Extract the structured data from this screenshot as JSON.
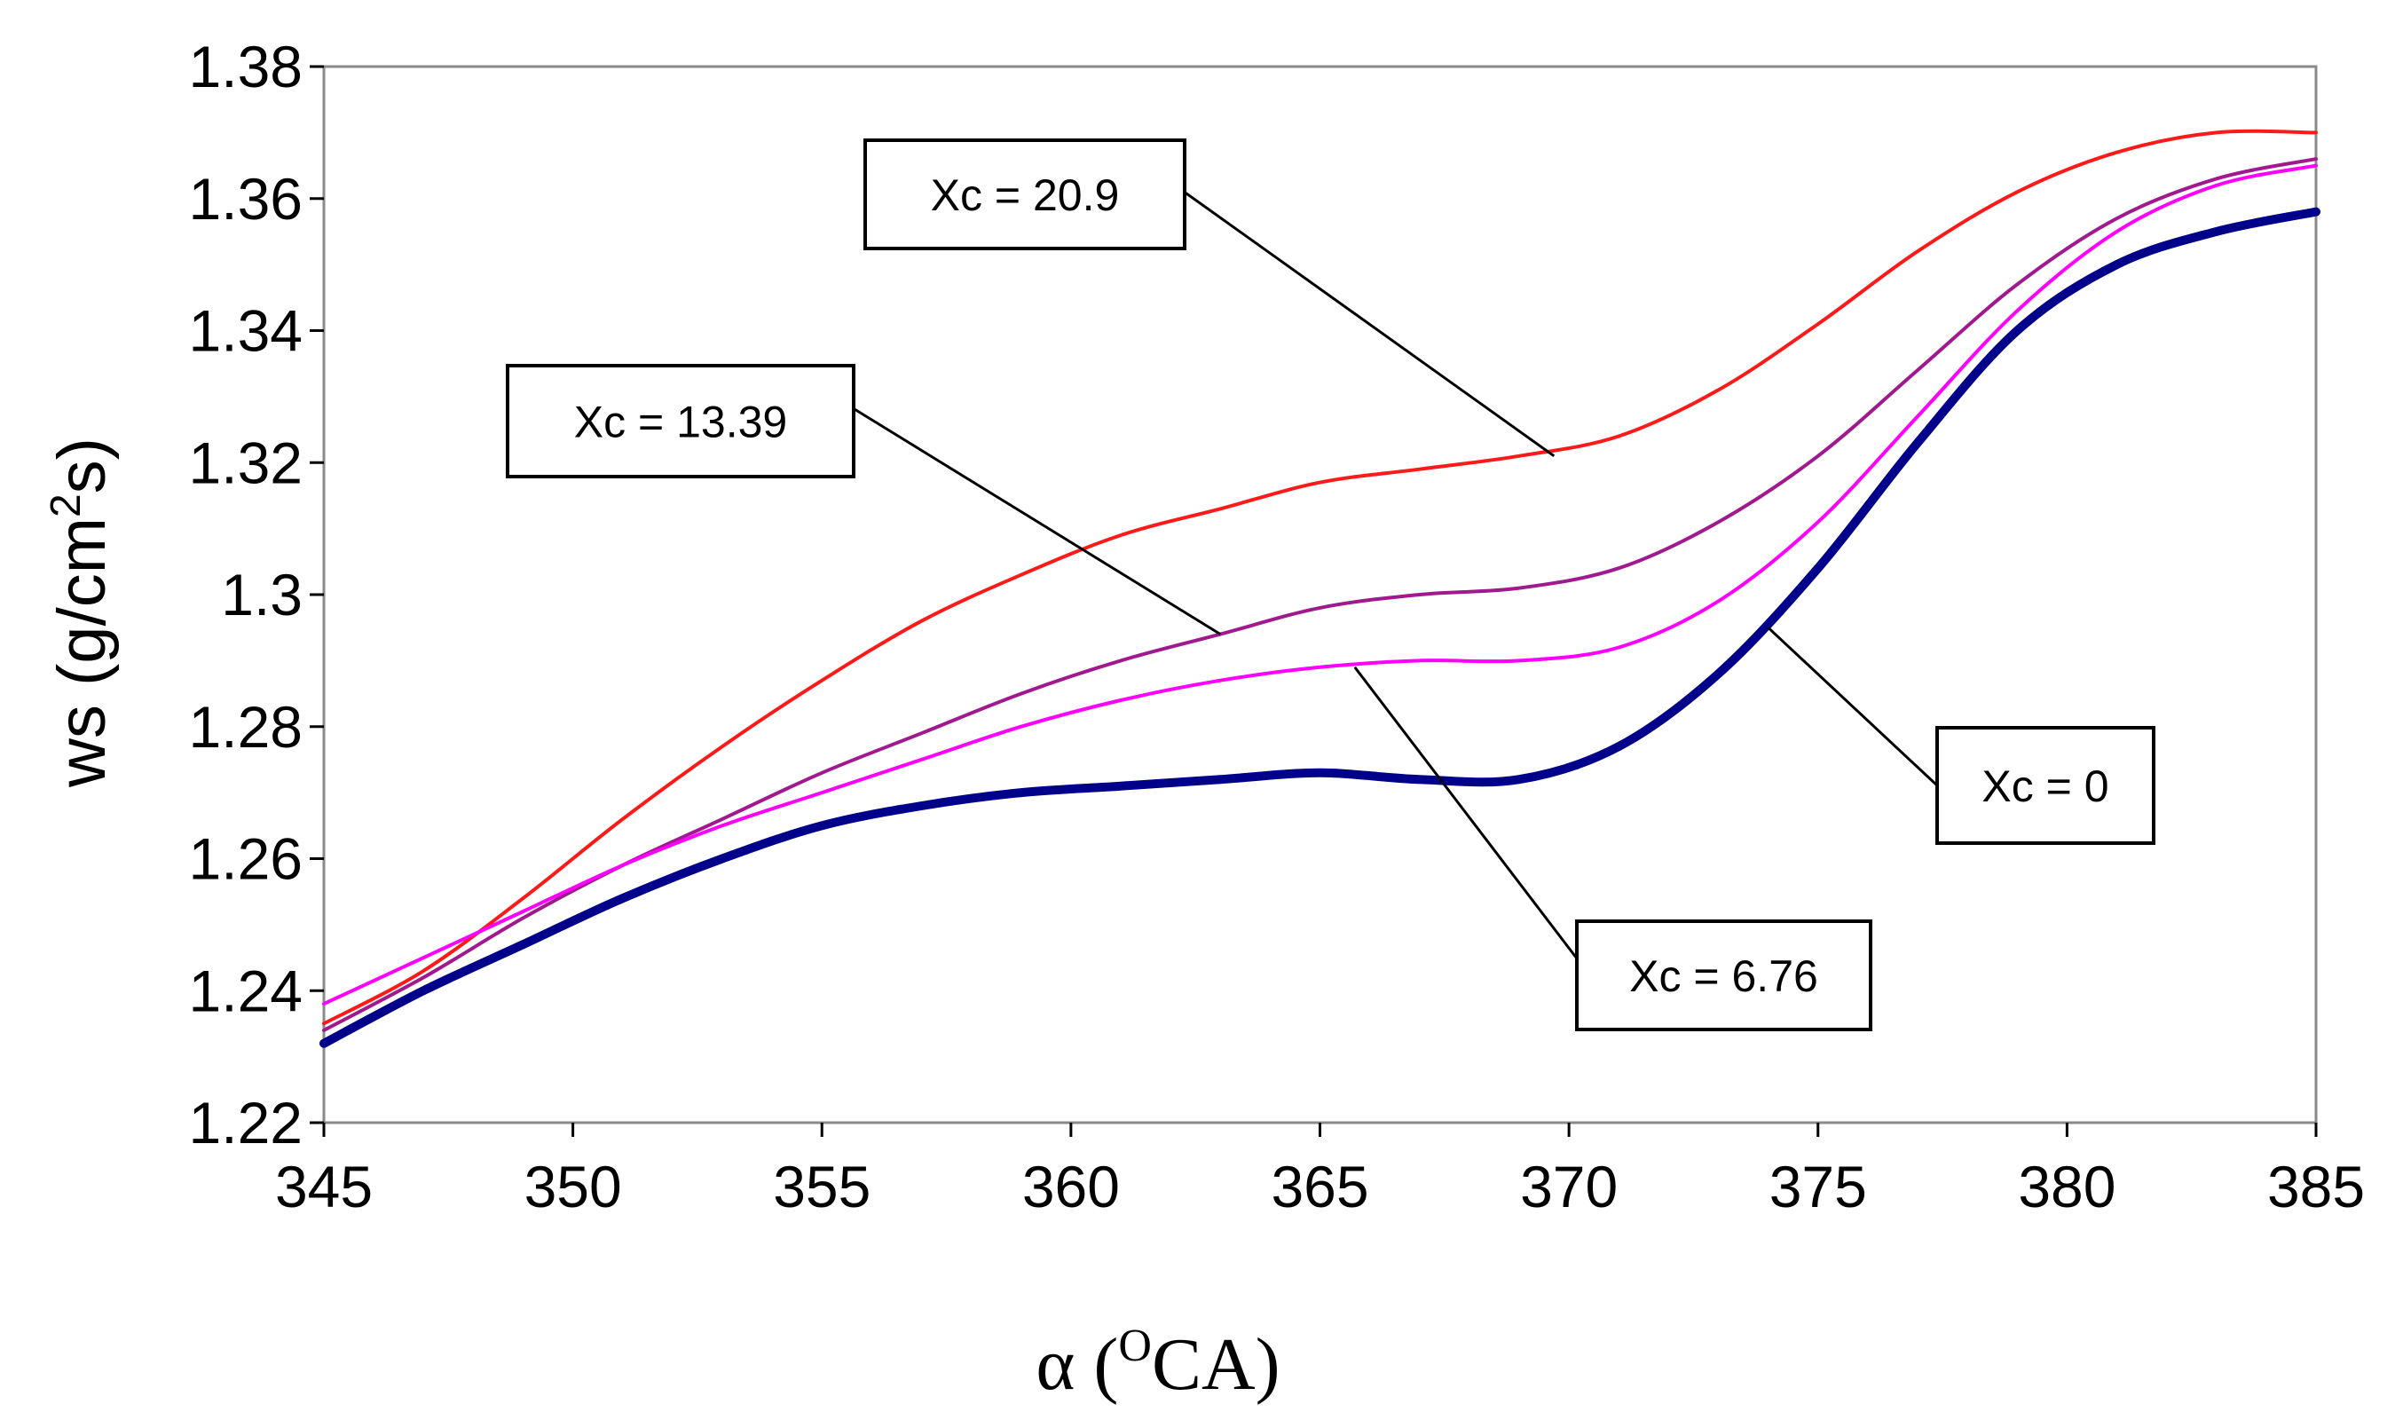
{
  "chart_data": {
    "type": "line",
    "title": "",
    "xlabel": {
      "prefix": "α (",
      "sup": "O",
      "suffix": "CA)"
    },
    "ylabel": {
      "prefix": "ws (g/cm",
      "sup": "2",
      "suffix": "s)"
    },
    "xlim": [
      345,
      385
    ],
    "ylim": [
      1.22,
      1.38
    ],
    "xticks": [
      "345",
      "350",
      "355",
      "360",
      "365",
      "370",
      "375",
      "380",
      "385"
    ],
    "yticks": [
      "1.22",
      "1.24",
      "1.26",
      "1.28",
      "1.3",
      "1.32",
      "1.34",
      "1.36",
      "1.38"
    ],
    "grid": false,
    "legend": "callouts",
    "series": [
      {
        "name": "Xc = 20.9",
        "color": "#ff1a1a",
        "width": 4,
        "points": [
          [
            345,
            1.235
          ],
          [
            347,
            1.243
          ],
          [
            349,
            1.254
          ],
          [
            351,
            1.266
          ],
          [
            353,
            1.277
          ],
          [
            355,
            1.287
          ],
          [
            357,
            1.296
          ],
          [
            359,
            1.303
          ],
          [
            361,
            1.309
          ],
          [
            363,
            1.313
          ],
          [
            365,
            1.317
          ],
          [
            367,
            1.319
          ],
          [
            369,
            1.321
          ],
          [
            371,
            1.324
          ],
          [
            373,
            1.331
          ],
          [
            375,
            1.341
          ],
          [
            377,
            1.352
          ],
          [
            379,
            1.361
          ],
          [
            381,
            1.367
          ],
          [
            383,
            1.37
          ],
          [
            385,
            1.37
          ]
        ]
      },
      {
        "name": "Xc = 13.39",
        "color": "#a0198f",
        "width": 4,
        "points": [
          [
            345,
            1.234
          ],
          [
            347,
            1.242
          ],
          [
            349,
            1.251
          ],
          [
            351,
            1.259
          ],
          [
            353,
            1.266
          ],
          [
            355,
            1.273
          ],
          [
            357,
            1.279
          ],
          [
            359,
            1.285
          ],
          [
            361,
            1.29
          ],
          [
            363,
            1.294
          ],
          [
            365,
            1.298
          ],
          [
            367,
            1.3
          ],
          [
            369,
            1.301
          ],
          [
            371,
            1.304
          ],
          [
            373,
            1.311
          ],
          [
            375,
            1.321
          ],
          [
            377,
            1.334
          ],
          [
            379,
            1.347
          ],
          [
            381,
            1.357
          ],
          [
            383,
            1.363
          ],
          [
            385,
            1.366
          ]
        ]
      },
      {
        "name": "Xc = 6.76",
        "color": "#ff00ff",
        "width": 4,
        "points": [
          [
            345,
            1.238
          ],
          [
            347,
            1.245
          ],
          [
            349,
            1.252
          ],
          [
            351,
            1.259
          ],
          [
            353,
            1.265
          ],
          [
            355,
            1.27
          ],
          [
            357,
            1.275
          ],
          [
            359,
            1.28
          ],
          [
            361,
            1.284
          ],
          [
            363,
            1.287
          ],
          [
            365,
            1.289
          ],
          [
            367,
            1.29
          ],
          [
            369,
            1.29
          ],
          [
            371,
            1.292
          ],
          [
            373,
            1.299
          ],
          [
            375,
            1.311
          ],
          [
            377,
            1.327
          ],
          [
            379,
            1.343
          ],
          [
            381,
            1.355
          ],
          [
            383,
            1.362
          ],
          [
            385,
            1.365
          ]
        ]
      },
      {
        "name": "Xc = 0",
        "color": "#00008b",
        "width": 10,
        "points": [
          [
            345,
            1.232
          ],
          [
            347,
            1.24
          ],
          [
            349,
            1.247
          ],
          [
            351,
            1.254
          ],
          [
            353,
            1.26
          ],
          [
            355,
            1.265
          ],
          [
            357,
            1.268
          ],
          [
            359,
            1.27
          ],
          [
            361,
            1.271
          ],
          [
            363,
            1.272
          ],
          [
            365,
            1.273
          ],
          [
            367,
            1.272
          ],
          [
            369,
            1.272
          ],
          [
            371,
            1.277
          ],
          [
            373,
            1.288
          ],
          [
            375,
            1.304
          ],
          [
            377,
            1.323
          ],
          [
            379,
            1.34
          ],
          [
            381,
            1.35
          ],
          [
            383,
            1.355
          ],
          [
            385,
            1.358
          ]
        ]
      }
    ],
    "annotations": [
      {
        "label": "Xc = 20.9",
        "target": [
          369.7,
          1.321
        ]
      },
      {
        "label": "Xc = 13.39",
        "target": [
          363.0,
          1.294
        ]
      },
      {
        "label": "Xc = 6.76",
        "target": [
          365.7,
          1.289
        ]
      },
      {
        "label": "Xc = 0",
        "target": [
          374.0,
          1.295
        ]
      }
    ]
  }
}
